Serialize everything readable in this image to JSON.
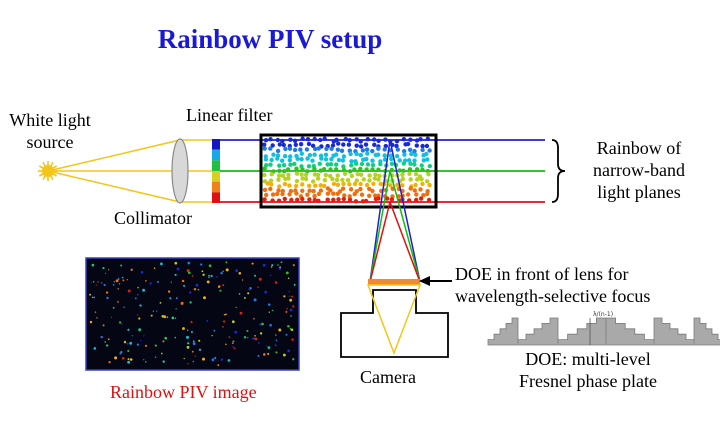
{
  "title": "Rainbow PIV setup",
  "labels": {
    "white_light_line1": "White light",
    "white_light_line2": "source",
    "linear_filter": "Linear filter",
    "collimator": "Collimator",
    "rainbow_line1": "Rainbow of",
    "rainbow_line2": "narrow-band",
    "rainbow_line3": "light planes",
    "doe_line1": "DOE in front of lens for",
    "doe_line2": "wavelength-selective focus",
    "camera": "Camera",
    "rainbow_image": "Rainbow PIV image",
    "doe_plate_line1": "DOE: multi-level",
    "doe_plate_line2": "Fresnel phase plate",
    "plate_annotation": "λ/(n-1)"
  },
  "colors": {
    "title": "#1a1ad6",
    "image_caption": "#e01010",
    "beam_light": "#f5c518",
    "plane_blue": "#2020d0",
    "plane_green": "#10c010",
    "plane_red": "#e01010",
    "doe_bar": "#f08a30",
    "plate_fill": "#a9a9a9"
  },
  "filter_colors": [
    "#1515c8",
    "#18a8e8",
    "#20c040",
    "#d8d020",
    "#f08018",
    "#e01010"
  ],
  "particle_colors": [
    "#1a2ad0",
    "#1e7ae8",
    "#10c0e0",
    "#10d080",
    "#30c020",
    "#b8d020",
    "#f0b010",
    "#f07010",
    "#e02010"
  ]
}
